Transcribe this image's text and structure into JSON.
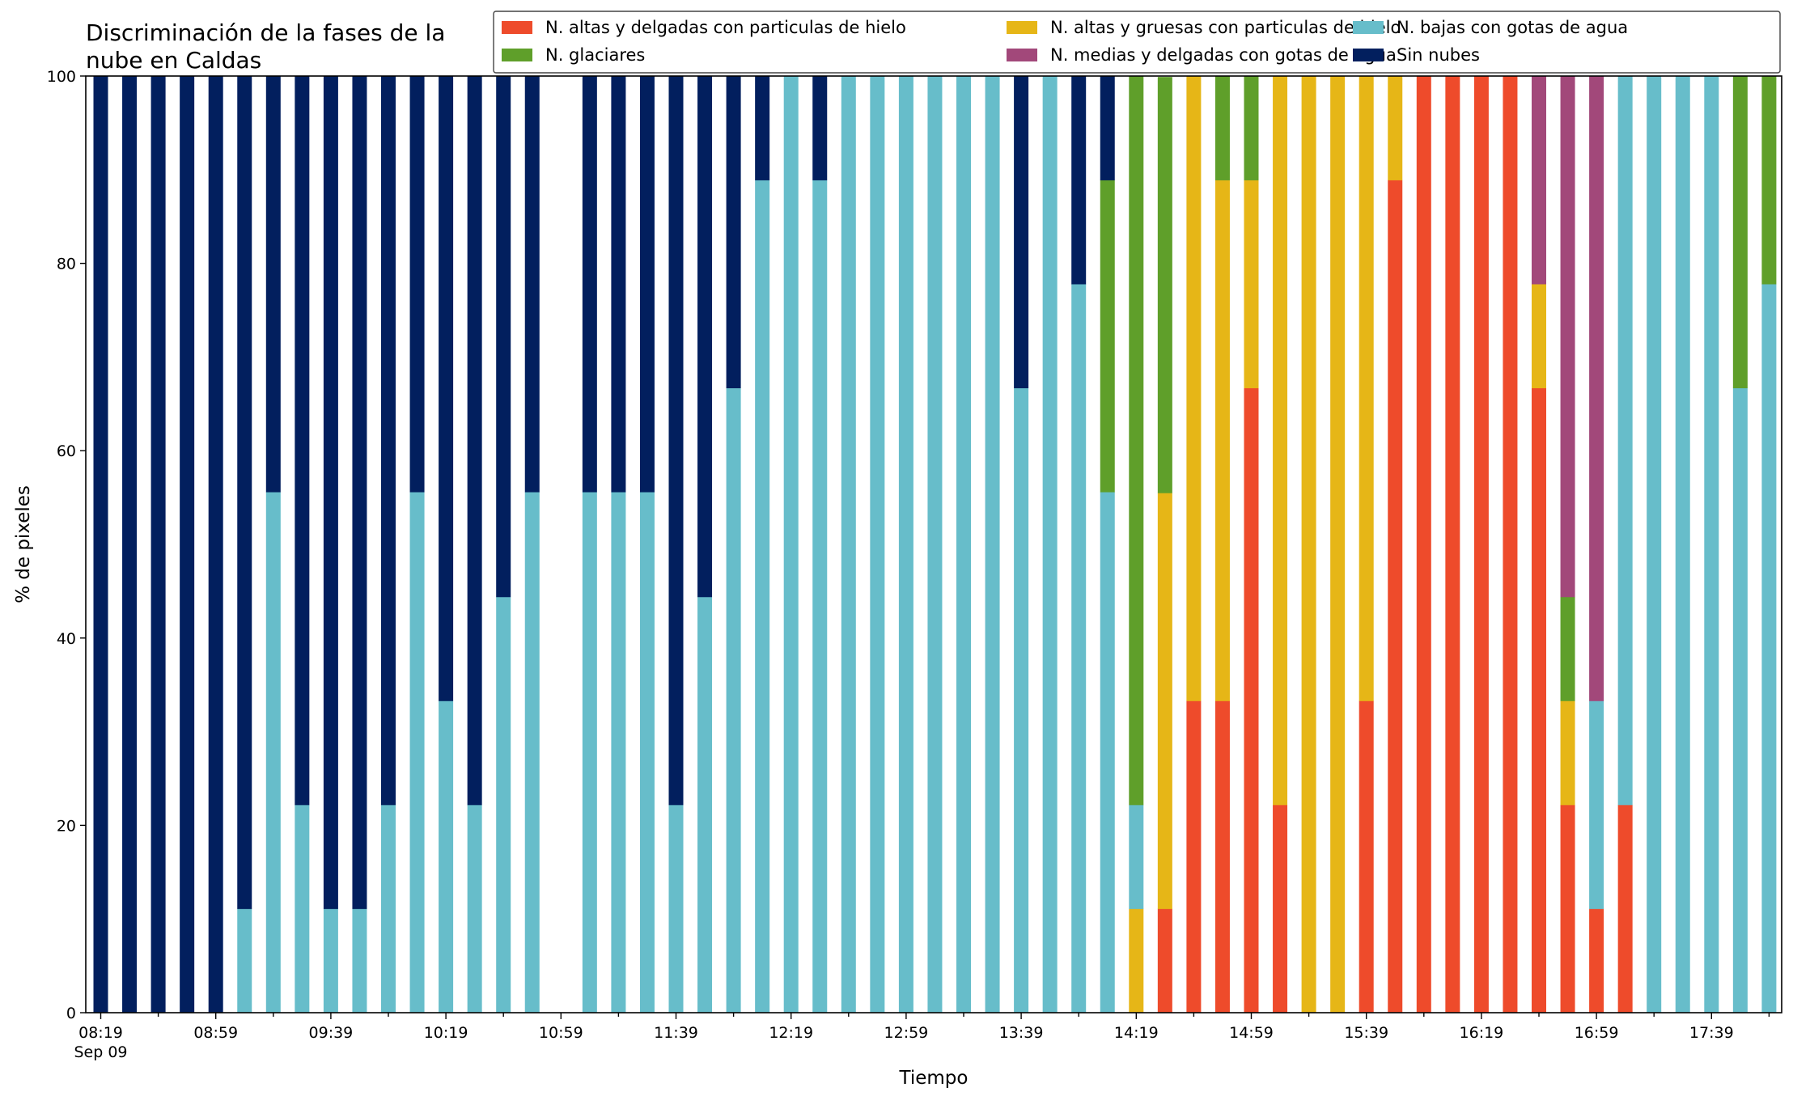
{
  "chart_data": {
    "type": "bar",
    "stacked": true,
    "title_lines": [
      "Discriminación de la fases de la",
      "nube en Caldas"
    ],
    "xlabel": "Tiempo",
    "ylabel": "% de pixeles",
    "ylim": [
      0,
      100
    ],
    "yticks": [
      0,
      20,
      40,
      60,
      80,
      100
    ],
    "xtick_labels": [
      "08:19",
      "08:59",
      "09:39",
      "10:19",
      "10:59",
      "11:39",
      "12:19",
      "12:59",
      "13:39",
      "14:19",
      "14:59",
      "15:39",
      "16:19",
      "16:59",
      "17:39"
    ],
    "xtick_sublabel": "Sep 09",
    "legend_position": "top-right",
    "legend_columns": 3,
    "grid": false,
    "series": [
      {
        "name": "N. altas y delgadas con particulas de hielo",
        "color": "#EE4B2B"
      },
      {
        "name": "N. altas y gruesas con particulas de hielo",
        "color": "#E6B617"
      },
      {
        "name": "N. bajas con gotas de agua",
        "color": "#67BDCA"
      },
      {
        "name": "N. glaciares",
        "color": "#5F9F2A"
      },
      {
        "name": "N. medias y delgadas con gotas de agua",
        "color": "#A2487A"
      },
      {
        "name": "Sin nubes",
        "color": "#021F5E"
      }
    ],
    "stack_order": [
      "N. altas y delgadas con particulas de hielo",
      "N. altas y gruesas con particulas de hielo",
      "N. bajas con gotas de agua",
      "N. glaciares",
      "N. medias y delgadas con gotas de agua",
      "Sin nubes"
    ],
    "bars": [
      [
        0,
        0,
        0,
        0,
        0,
        100
      ],
      [
        0,
        0,
        0,
        0,
        0,
        100
      ],
      [
        0,
        0,
        0,
        0,
        0,
        100
      ],
      [
        0,
        0,
        0,
        0,
        0,
        100
      ],
      [
        0,
        0,
        0,
        0,
        0,
        100
      ],
      [
        0,
        0,
        11.1,
        0,
        0,
        88.9
      ],
      [
        0,
        0,
        55.6,
        0,
        0,
        44.4
      ],
      [
        0,
        0,
        22.2,
        0,
        0,
        77.8
      ],
      [
        0,
        0,
        11.1,
        0,
        0,
        88.9
      ],
      [
        0,
        0,
        11.1,
        0,
        0,
        88.9
      ],
      [
        0,
        0,
        22.2,
        0,
        0,
        77.8
      ],
      [
        0,
        0,
        55.6,
        0,
        0,
        44.4
      ],
      [
        0,
        0,
        33.3,
        0,
        0,
        66.7
      ],
      [
        0,
        0,
        22.2,
        0,
        0,
        77.8
      ],
      [
        0,
        0,
        44.4,
        0,
        0,
        55.6
      ],
      [
        0,
        0,
        55.6,
        0,
        0,
        44.4
      ],
      null,
      [
        0,
        0,
        55.6,
        0,
        0,
        44.4
      ],
      [
        0,
        0,
        55.6,
        0,
        0,
        44.4
      ],
      [
        0,
        0,
        55.6,
        0,
        0,
        44.4
      ],
      [
        0,
        0,
        22.2,
        0,
        0,
        77.8
      ],
      [
        0,
        0,
        44.4,
        0,
        0,
        55.6
      ],
      [
        0,
        0,
        66.7,
        0,
        0,
        33.3
      ],
      [
        0,
        0,
        88.9,
        0,
        0,
        11.1
      ],
      [
        0,
        0,
        100,
        0,
        0,
        0
      ],
      [
        0,
        0,
        88.9,
        0,
        0,
        11.1
      ],
      [
        0,
        0,
        100,
        0,
        0,
        0
      ],
      [
        0,
        0,
        100,
        0,
        0,
        0
      ],
      [
        0,
        0,
        100,
        0,
        0,
        0
      ],
      [
        0,
        0,
        100,
        0,
        0,
        0
      ],
      [
        0,
        0,
        100,
        0,
        0,
        0
      ],
      [
        0,
        0,
        100,
        0,
        0,
        0
      ],
      [
        0,
        0,
        66.7,
        0,
        0,
        33.3
      ],
      [
        0,
        0,
        100,
        0,
        0,
        0
      ],
      [
        0,
        0,
        77.8,
        0,
        0,
        22.2
      ],
      [
        0,
        0,
        55.6,
        33.3,
        0,
        11.1
      ],
      [
        0,
        11.1,
        11.1,
        77.8,
        0,
        0
      ],
      [
        11.1,
        44.4,
        0,
        44.4,
        0,
        0
      ],
      [
        33.3,
        66.7,
        0,
        0,
        0,
        0
      ],
      [
        33.3,
        55.6,
        0,
        11.1,
        0,
        0
      ],
      [
        66.7,
        22.2,
        0,
        11.1,
        0,
        0
      ],
      [
        22.2,
        77.8,
        0,
        0,
        0,
        0
      ],
      [
        0,
        100,
        0,
        0,
        0,
        0
      ],
      [
        0,
        100,
        0,
        0,
        0,
        0
      ],
      [
        33.3,
        66.7,
        0,
        0,
        0,
        0
      ],
      [
        88.9,
        11.1,
        0,
        0,
        0,
        0
      ],
      [
        100,
        0,
        0,
        0,
        0,
        0
      ],
      [
        100,
        0,
        0,
        0,
        0,
        0
      ],
      [
        100,
        0,
        0,
        0,
        0,
        0
      ],
      [
        100,
        0,
        0,
        0,
        0,
        0
      ],
      [
        66.7,
        11.1,
        0,
        0,
        22.2,
        0
      ],
      [
        22.2,
        11.1,
        0,
        11.1,
        55.6,
        0
      ],
      [
        11.1,
        0,
        22.2,
        0,
        66.7,
        0
      ],
      [
        22.2,
        0,
        77.8,
        0,
        0,
        0
      ],
      [
        0,
        0,
        100,
        0,
        0,
        0
      ],
      [
        0,
        0,
        100,
        0,
        0,
        0
      ],
      [
        0,
        0,
        100,
        0,
        0,
        0
      ],
      [
        0,
        0,
        66.7,
        33.3,
        0,
        0
      ],
      [
        0,
        0,
        77.8,
        22.2,
        0,
        0
      ]
    ]
  }
}
